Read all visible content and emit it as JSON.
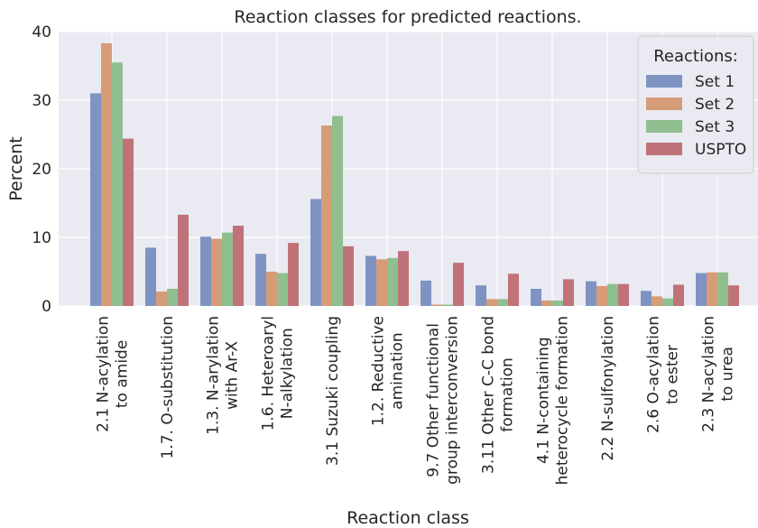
{
  "chart_data": {
    "type": "bar",
    "title": "Reaction classes for predicted reactions.",
    "x_label": "Reaction class",
    "y_label": "Percent",
    "legend_title": "Reactions:",
    "legend": "upper right",
    "grid": true,
    "categories": [
      "2.1 N-acylation\nto amide",
      "1.7. O-substitution",
      "1.3. N-arylation\nwith Ar-X",
      "1.6. Heteroaryl\nN-alkylation",
      "3.1 Suzuki coupling",
      "1.2. Reductive\namination",
      "9.7 Other functional\ngroup interconversion",
      "3.11 Other C-C bond\nformation",
      "4.1 N-containing\nheterocycle formation",
      "2.2 N-sulfonylation",
      "2.6 O-acylation\nto ester",
      "2.3 N-acylation\nto urea"
    ],
    "series": [
      {
        "name": "Set 1",
        "color": "#7f93c3",
        "values": [
          31.0,
          8.5,
          10.1,
          7.6,
          15.6,
          7.3,
          3.7,
          3.0,
          2.5,
          3.6,
          2.2,
          4.8
        ]
      },
      {
        "name": "Set 2",
        "color": "#d59c77",
        "values": [
          38.3,
          2.1,
          9.8,
          5.0,
          26.3,
          6.8,
          0.2,
          1.0,
          0.8,
          2.9,
          1.4,
          4.9
        ]
      },
      {
        "name": "Set 3",
        "color": "#8fbf8f",
        "values": [
          35.5,
          2.5,
          10.7,
          4.8,
          27.7,
          7.0,
          0.2,
          1.0,
          0.8,
          3.2,
          1.1,
          4.9
        ]
      },
      {
        "name": "USPTO",
        "color": "#c07279",
        "values": [
          24.4,
          13.3,
          11.7,
          9.2,
          8.7,
          8.0,
          6.3,
          4.7,
          3.9,
          3.2,
          3.1,
          3.0
        ]
      }
    ],
    "ylim": [
      0,
      40
    ],
    "yticks": [
      0,
      10,
      20,
      30,
      40
    ]
  }
}
